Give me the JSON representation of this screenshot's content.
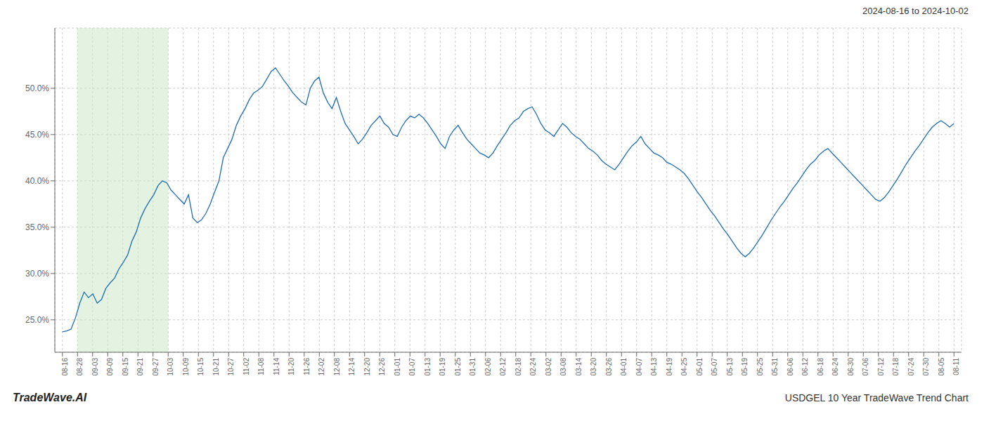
{
  "chart_data": {
    "type": "line",
    "title": "USDGEL 10 Year TradeWave Trend Chart",
    "subtitle": "2024-08-16 to 2024-10-02",
    "annotations": [
      "TradeWave.AI"
    ],
    "color": "#1f6db5",
    "grid": true,
    "shaded_region": {
      "x": [
        1,
        7
      ],
      "color": "#cde8c8"
    },
    "xlim": [
      -0.5,
      59.5
    ],
    "xticks": [
      {
        "value": 0,
        "label": "08-16"
      },
      {
        "value": 1,
        "label": "08-28"
      },
      {
        "value": 2,
        "label": "09-03"
      },
      {
        "value": 3,
        "label": "09-09"
      },
      {
        "value": 4,
        "label": "09-15"
      },
      {
        "value": 5,
        "label": "09-21"
      },
      {
        "value": 6,
        "label": "09-27"
      },
      {
        "value": 7,
        "label": "10-03"
      },
      {
        "value": 8,
        "label": "10-09"
      },
      {
        "value": 9,
        "label": "10-15"
      },
      {
        "value": 10,
        "label": "10-21"
      },
      {
        "value": 11,
        "label": "10-27"
      },
      {
        "value": 12,
        "label": "11-02"
      },
      {
        "value": 13,
        "label": "11-08"
      },
      {
        "value": 14,
        "label": "11-14"
      },
      {
        "value": 15,
        "label": "11-20"
      },
      {
        "value": 16,
        "label": "11-26"
      },
      {
        "value": 17,
        "label": "12-02"
      },
      {
        "value": 18,
        "label": "12-08"
      },
      {
        "value": 19,
        "label": "12-14"
      },
      {
        "value": 20,
        "label": "12-20"
      },
      {
        "value": 21,
        "label": "12-26"
      },
      {
        "value": 22,
        "label": "01-01"
      },
      {
        "value": 23,
        "label": "01-07"
      },
      {
        "value": 24,
        "label": "01-13"
      },
      {
        "value": 25,
        "label": "01-19"
      },
      {
        "value": 26,
        "label": "01-25"
      },
      {
        "value": 27,
        "label": "01-31"
      },
      {
        "value": 28,
        "label": "02-06"
      },
      {
        "value": 29,
        "label": "02-12"
      },
      {
        "value": 30,
        "label": "02-18"
      },
      {
        "value": 31,
        "label": "02-24"
      },
      {
        "value": 32,
        "label": "03-02"
      },
      {
        "value": 33,
        "label": "03-08"
      },
      {
        "value": 34,
        "label": "03-14"
      },
      {
        "value": 35,
        "label": "03-20"
      },
      {
        "value": 36,
        "label": "03-26"
      },
      {
        "value": 37,
        "label": "04-01"
      },
      {
        "value": 38,
        "label": "04-07"
      },
      {
        "value": 39,
        "label": "04-13"
      },
      {
        "value": 40,
        "label": "04-19"
      },
      {
        "value": 41,
        "label": "04-25"
      },
      {
        "value": 42,
        "label": "05-01"
      },
      {
        "value": 43,
        "label": "05-07"
      },
      {
        "value": 44,
        "label": "05-13"
      },
      {
        "value": 45,
        "label": "05-19"
      },
      {
        "value": 46,
        "label": "05-25"
      },
      {
        "value": 47,
        "label": "05-31"
      },
      {
        "value": 48,
        "label": "06-06"
      },
      {
        "value": 49,
        "label": "06-12"
      },
      {
        "value": 50,
        "label": "06-18"
      },
      {
        "value": 51,
        "label": "06-24"
      },
      {
        "value": 52,
        "label": "06-30"
      },
      {
        "value": 53,
        "label": "07-06"
      },
      {
        "value": 54,
        "label": "07-12"
      },
      {
        "value": 55,
        "label": "07-18"
      },
      {
        "value": 56,
        "label": "07-24"
      },
      {
        "value": 57,
        "label": "07-30"
      },
      {
        "value": 58,
        "label": "08-05"
      },
      {
        "value": 59,
        "label": "08-11"
      }
    ],
    "ylim": [
      0.215,
      0.565
    ],
    "yticks": [
      {
        "value": 0.25,
        "label": "25.0%"
      },
      {
        "value": 0.3,
        "label": "30.0%"
      },
      {
        "value": 0.35,
        "label": "35.0%"
      },
      {
        "value": 0.4,
        "label": "40.0%"
      },
      {
        "value": 0.45,
        "label": "45.0%"
      },
      {
        "value": 0.5,
        "label": "50.0%"
      }
    ],
    "x": [
      0,
      0.2878,
      0.5756,
      0.8634,
      1.1512,
      1.439,
      1.7268,
      2.0146,
      2.3024,
      2.5902,
      2.878,
      3.1659,
      3.4537,
      3.7415,
      4.0293,
      4.3171,
      4.6049,
      4.8927,
      5.1805,
      5.4683,
      5.7561,
      6.0439,
      6.3317,
      6.6195,
      6.9073,
      7.1951,
      7.4829,
      7.7707,
      8.0585,
      8.3463,
      8.6341,
      8.922,
      9.2098,
      9.4976,
      9.7854,
      10.0732,
      10.361,
      10.6488,
      10.9366,
      11.2244,
      11.5122,
      11.8,
      12.0878,
      12.3756,
      12.6634,
      12.9512,
      13.239,
      13.5268,
      13.8146,
      14.1024,
      14.3902,
      14.678,
      14.9659,
      15.2537,
      15.5415,
      15.8293,
      16.1171,
      16.4049,
      16.6927,
      16.9805,
      17.2683,
      17.5561,
      17.8439,
      18.1317,
      18.4195,
      18.7073,
      18.9951,
      19.2829,
      19.5707,
      19.8585,
      20.1463,
      20.4341,
      20.722,
      21.0098,
      21.2976,
      21.5854,
      21.8732,
      22.161,
      22.4488,
      22.7366,
      23.0244,
      23.3122,
      23.6,
      23.8878,
      24.1756,
      24.4634,
      24.7512,
      25.039,
      25.3268,
      25.6146,
      25.9024,
      26.1902,
      26.478,
      26.7659,
      27.0537,
      27.3415,
      27.6293,
      27.9171,
      28.2049,
      28.4927,
      28.7805,
      29.0683,
      29.3561,
      29.6439,
      29.9317,
      30.2195,
      30.5073,
      30.7951,
      31.0829,
      31.3707,
      31.6585,
      31.9463,
      32.2341,
      32.522,
      32.8098,
      33.0976,
      33.3854,
      33.6732,
      33.961,
      34.2488,
      34.5366,
      34.8244,
      35.1122,
      35.4,
      35.6878,
      35.9756,
      36.2634,
      36.5512,
      36.839,
      37.1268,
      37.4146,
      37.7024,
      37.9902,
      38.278,
      38.5659,
      38.8537,
      39.1415,
      39.4293,
      39.7171,
      40.0049,
      40.2927,
      40.5805,
      40.8683,
      41.1561,
      41.4439,
      41.7317,
      42.0195,
      42.3073,
      42.5951,
      42.8829,
      43.1707,
      43.4585,
      43.7463,
      44.0341,
      44.322,
      44.6098,
      44.8976,
      45.1854,
      45.4732,
      45.761,
      46.0488,
      46.3366,
      46.6244,
      46.9122,
      47.2,
      47.4878,
      47.7756,
      48.0634,
      48.3512,
      48.639,
      48.9268,
      49.2146,
      49.5024,
      49.7902,
      50.078,
      50.3659,
      50.6537,
      50.9415,
      51.2293,
      51.5171,
      51.8049,
      52.0927,
      52.3805,
      52.6683,
      52.9561,
      53.2439,
      53.5317,
      53.8195,
      54.1073,
      54.3951,
      54.6829,
      54.9707,
      55.2585,
      55.5463,
      55.8341,
      56.122,
      56.4098,
      56.6976,
      56.9854,
      57.2732,
      57.561,
      57.8488,
      58.1366,
      58.4244,
      58.7122,
      59
    ],
    "values": [
      0.237,
      0.238,
      0.24,
      0.252,
      0.268,
      0.28,
      0.274,
      0.278,
      0.268,
      0.272,
      0.284,
      0.29,
      0.295,
      0.305,
      0.312,
      0.32,
      0.335,
      0.345,
      0.36,
      0.37,
      0.378,
      0.385,
      0.395,
      0.4,
      0.398,
      0.39,
      0.385,
      0.38,
      0.375,
      0.385,
      0.36,
      0.355,
      0.358,
      0.365,
      0.375,
      0.388,
      0.4,
      0.425,
      0.435,
      0.445,
      0.46,
      0.47,
      0.478,
      0.488,
      0.495,
      0.498,
      0.502,
      0.51,
      0.518,
      0.522,
      0.515,
      0.508,
      0.502,
      0.495,
      0.49,
      0.485,
      0.482,
      0.5,
      0.508,
      0.512,
      0.495,
      0.485,
      0.478,
      0.49,
      0.475,
      0.462,
      0.455,
      0.448,
      0.44,
      0.445,
      0.452,
      0.46,
      0.465,
      0.47,
      0.462,
      0.458,
      0.45,
      0.448,
      0.458,
      0.465,
      0.47,
      0.468,
      0.472,
      0.468,
      0.462,
      0.455,
      0.448,
      0.44,
      0.435,
      0.448,
      0.455,
      0.46,
      0.452,
      0.445,
      0.44,
      0.435,
      0.43,
      0.428,
      0.425,
      0.43,
      0.438,
      0.445,
      0.452,
      0.46,
      0.465,
      0.468,
      0.475,
      0.478,
      0.48,
      0.472,
      0.462,
      0.455,
      0.452,
      0.448,
      0.455,
      0.462,
      0.458,
      0.452,
      0.448,
      0.445,
      0.44,
      0.435,
      0.432,
      0.428,
      0.422,
      0.418,
      0.415,
      0.412,
      0.418,
      0.425,
      0.432,
      0.438,
      0.442,
      0.448,
      0.44,
      0.435,
      0.43,
      0.428,
      0.425,
      0.42,
      0.418,
      0.415,
      0.412,
      0.408,
      0.402,
      0.395,
      0.388,
      0.382,
      0.375,
      0.368,
      0.362,
      0.355,
      0.348,
      0.342,
      0.335,
      0.328,
      0.322,
      0.318,
      0.322,
      0.328,
      0.335,
      0.342,
      0.35,
      0.358,
      0.365,
      0.372,
      0.378,
      0.385,
      0.392,
      0.398,
      0.405,
      0.412,
      0.418,
      0.422,
      0.428,
      0.432,
      0.435,
      0.43,
      0.425,
      0.42,
      0.415,
      0.41,
      0.405,
      0.4,
      0.395,
      0.39,
      0.385,
      0.38,
      0.378,
      0.382,
      0.388,
      0.395,
      0.402,
      0.41,
      0.418,
      0.425,
      0.432,
      0.438,
      0.445,
      0.452,
      0.458,
      0.462,
      0.465,
      0.462,
      0.458,
      0.462
    ]
  }
}
